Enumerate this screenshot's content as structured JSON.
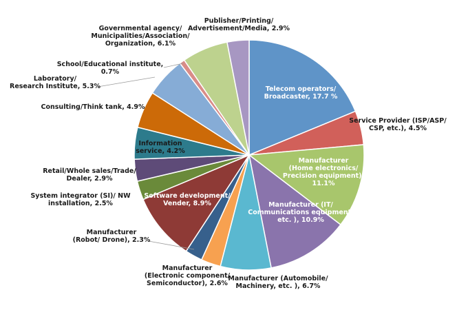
{
  "chart_data": {
    "type": "pie",
    "title": "",
    "slices": [
      {
        "lines": [
          "Telecom operators/",
          "Broadcaster, 17.7 %"
        ],
        "value": 17.7,
        "color": "#5f94c8"
      },
      {
        "lines": [
          "Service Provider (ISP/ASP/",
          "CSP, etc.), 4.5%"
        ],
        "value": 4.5,
        "color": "#d1605a"
      },
      {
        "lines": [
          "Manufacturer",
          "(Home electronics/",
          "Precision equipment),",
          "11.1%"
        ],
        "value": 11.1,
        "color": "#a8c66c"
      },
      {
        "lines": [
          "Manufacturer (IT/",
          "Communications equipment,",
          "etc. ), 10.9%"
        ],
        "value": 10.9,
        "color": "#8a74ac"
      },
      {
        "lines": [
          "Manufacturer (Automobile/",
          "Machinery, etc. ), 6.7%"
        ],
        "value": 6.7,
        "color": "#5ab8d0"
      },
      {
        "lines": [
          "Manufacturer",
          "(Electronic component/",
          "Semiconductor), 2.6%"
        ],
        "value": 2.6,
        "color": "#f7a150"
      },
      {
        "lines": [
          "Manufacturer",
          "(Robot/ Drone), 2.3%"
        ],
        "value": 2.3,
        "color": "#37608c"
      },
      {
        "lines": [
          "Software development/",
          "Vender, 8.9%"
        ],
        "value": 8.9,
        "color": "#8e3a36"
      },
      {
        "lines": [
          "System integrator (SI)/ NW",
          "installation, 2.5%"
        ],
        "value": 2.5,
        "color": "#6a8a3a"
      },
      {
        "lines": [
          "Retail/Whole sales/Trade/",
          "Dealer, 2.9%"
        ],
        "value": 2.9,
        "color": "#5e4b78"
      },
      {
        "lines": [
          "Information",
          "service, 4.2%"
        ],
        "value": 4.2,
        "color": "#2d7b8c"
      },
      {
        "lines": [
          "Consulting/Think tank, 4.9%"
        ],
        "value": 4.9,
        "color": "#cc6a08"
      },
      {
        "lines": [
          "Laboratory/",
          "Research Institute, 5.3%"
        ],
        "value": 5.3,
        "color": "#86acd6"
      },
      {
        "lines": [
          "School/Educational institute,",
          "0.7%"
        ],
        "value": 0.7,
        "color": "#d98c88"
      },
      {
        "lines": [
          "Governmental agency/",
          "Municipalities/Association/",
          "Organization, 6.1%"
        ],
        "value": 6.1,
        "color": "#bdd28e"
      },
      {
        "lines": [
          "Publisher/Printing/",
          "Advertisement/Media, 2.9%"
        ],
        "value": 2.9,
        "color": "#a797c2"
      }
    ]
  }
}
